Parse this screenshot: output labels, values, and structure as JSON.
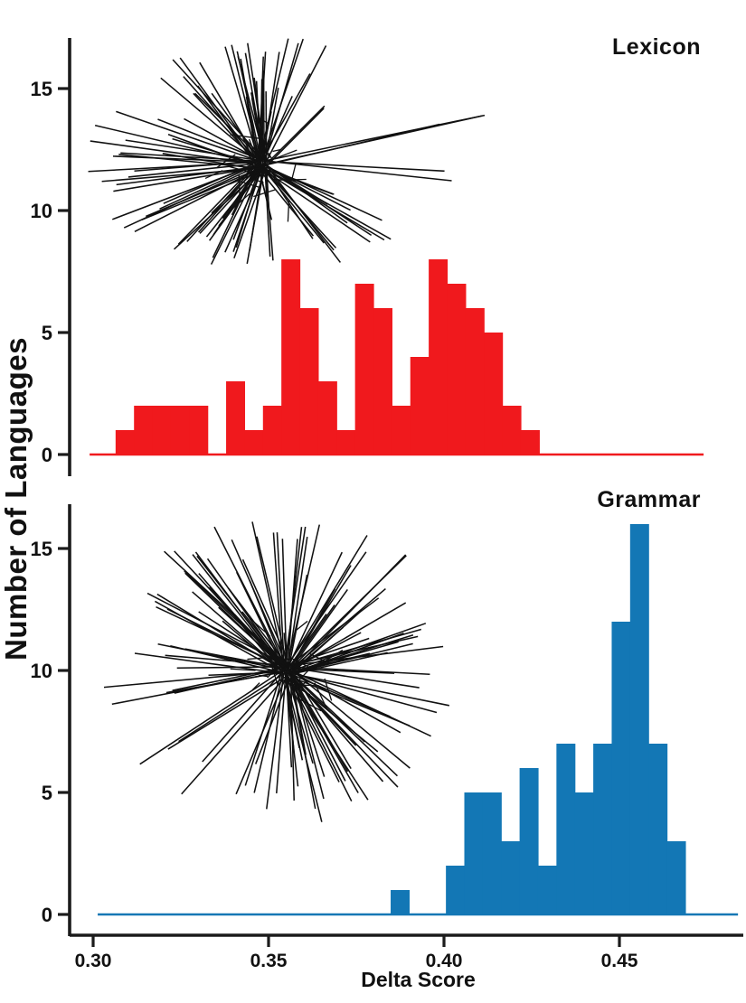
{
  "figure": {
    "background": "#ffffff",
    "axis_color": "#1b1b1b",
    "network_color": "#111111"
  },
  "chart_data": {
    "type": "bar",
    "subtype": "histogram-pair-with-neighbornet-insets",
    "title": "",
    "xlabel": "Delta Score",
    "ylabel": "Number of Languages",
    "x_ticks": [
      "0.30",
      "0.35",
      "0.40",
      "0.45"
    ],
    "x_tick_values": [
      0.3,
      0.35,
      0.4,
      0.45
    ],
    "y_ticks": [
      0,
      5,
      10,
      15
    ],
    "xlim": [
      0.2932,
      0.4855
    ],
    "ylim": [
      0,
      17
    ],
    "grid": "off",
    "bin_width": 0.00525,
    "panels": [
      {
        "label": "Lexicon",
        "color": "#F0191D",
        "bin_start": 0.3064,
        "heights": [
          1,
          2,
          2,
          2,
          2,
          0,
          3,
          1,
          2,
          8,
          6,
          3,
          1,
          7,
          6,
          2,
          4,
          8,
          7,
          6,
          5,
          2,
          1
        ],
        "baseline_span": [
          0.299,
          0.474
        ],
        "network": {
          "kind": "neighbornet-splits-graph",
          "center": [
            0.3482,
            11.85
          ],
          "extent_x": [
            0.2979,
            0.417
          ],
          "extent_y": [
            7.5,
            17.2
          ],
          "lines": 112,
          "seed": 11
        }
      },
      {
        "label": "Grammar",
        "color": "#1377B5",
        "bin_start": 0.3848,
        "heights": [
          1,
          0,
          0,
          2,
          5,
          5,
          3,
          6,
          2,
          7,
          5,
          7,
          12,
          16,
          7,
          3
        ],
        "baseline_span": [
          0.3013,
          0.4838
        ],
        "network": {
          "kind": "neighbornet-splits-graph",
          "center": [
            0.3552,
            10.0
          ],
          "extent_x": [
            0.3026,
            0.4036
          ],
          "extent_y": [
            3.6,
            16.7
          ],
          "lines": 124,
          "seed": 29
        }
      }
    ]
  }
}
